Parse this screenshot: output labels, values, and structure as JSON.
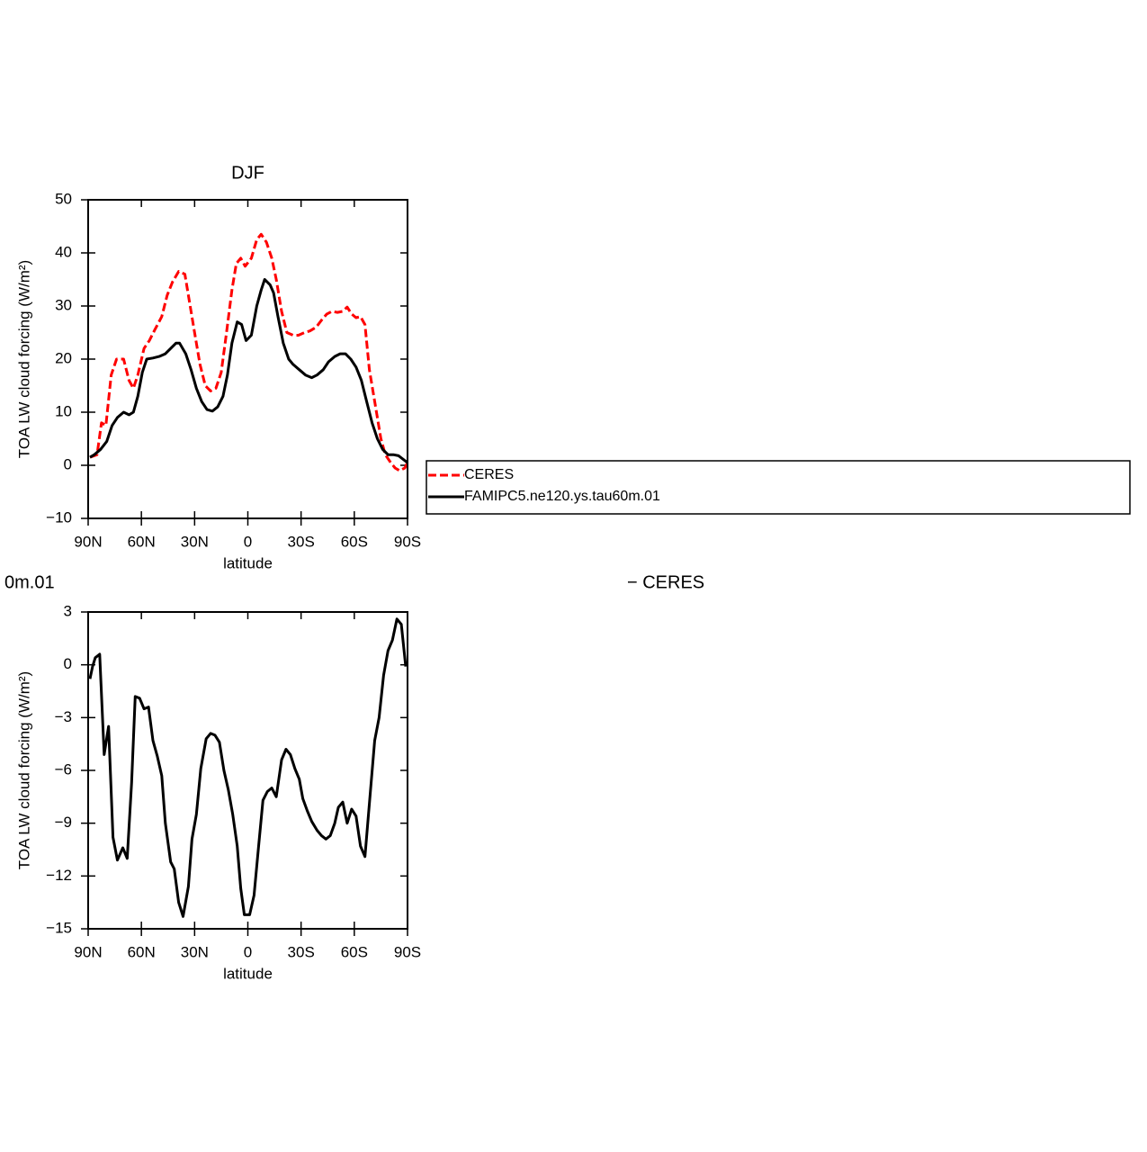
{
  "chart_data": [
    {
      "type": "line",
      "title": "DJF",
      "x_label": "latitude",
      "y_label": "TOA LW cloud forcing (W/m²)",
      "xlim": [
        90,
        -90
      ],
      "xticks": [
        {
          "value": 90,
          "label": "90N"
        },
        {
          "value": 60,
          "label": "60N"
        },
        {
          "value": 30,
          "label": "30N"
        },
        0,
        {
          "value": -30,
          "label": "30S"
        },
        {
          "value": -60,
          "label": "60S"
        },
        {
          "value": -90,
          "label": "90S"
        }
      ],
      "ylim": [
        -10,
        50
      ],
      "yticks": [
        {
          "value": -10,
          "label": "−10"
        },
        0,
        10,
        20,
        30,
        40,
        50
      ],
      "legend": "right",
      "series": [
        {
          "name": "CERES",
          "color": "#ff0000",
          "dash": true,
          "x": [
            89,
            85,
            82.5,
            80,
            77,
            74,
            70,
            67,
            64.5,
            62,
            58.5,
            55.5,
            52.5,
            48.5,
            45.5,
            42.5,
            39,
            35.5,
            33,
            30,
            27,
            24,
            21,
            18,
            15,
            12,
            9,
            6.5,
            4,
            1.5,
            -2,
            -5,
            -7.5,
            -10.5,
            -13.5,
            -16,
            -19,
            -22,
            -25.5,
            -28.5,
            -32,
            -35,
            -38.5,
            -41.5,
            -44.5,
            -47.5,
            -50.5,
            -53.5,
            -56,
            -58.5,
            -61,
            -63.5,
            -66,
            -68.5,
            -72,
            -75,
            -77.5,
            -80.5,
            -83,
            -85.5,
            -88.5,
            -90
          ],
          "values": [
            1.5,
            2,
            8,
            7.5,
            17,
            20,
            20,
            16,
            14.5,
            17,
            22,
            23.5,
            25.5,
            28,
            32,
            34.5,
            36.5,
            36,
            31,
            25,
            19,
            15,
            14,
            14.5,
            17.5,
            25,
            33,
            38,
            39,
            37.5,
            39,
            42.5,
            43.5,
            42,
            39,
            35,
            29,
            25,
            24.5,
            24.5,
            25,
            25.3,
            26,
            27.3,
            28.5,
            29,
            28.8,
            29,
            29.8,
            28.5,
            27.8,
            28,
            26.5,
            18,
            11,
            5,
            2,
            0.5,
            -0.5,
            -1,
            -0.5,
            0.5
          ]
        },
        {
          "name": "FAMIPC5.ne120.ys.tau60m.01",
          "color": "#000000",
          "dash": false,
          "x": [
            89,
            86.5,
            83,
            79.5,
            76.5,
            73.5,
            70,
            67,
            64.5,
            62,
            59.5,
            57,
            53.5,
            50,
            46.5,
            43.5,
            40.5,
            38.5,
            35,
            32,
            29,
            26,
            23,
            20,
            17,
            14,
            11.5,
            9,
            6,
            3.5,
            1,
            -2,
            -5,
            -7.5,
            -9.5,
            -12.5,
            -14.5,
            -17,
            -20,
            -23,
            -25.5,
            -29,
            -32.5,
            -36,
            -39,
            -42.5,
            -45.5,
            -49,
            -52,
            -55,
            -58,
            -61,
            -64,
            -67,
            -70,
            -73,
            -76,
            -79,
            -82,
            -85,
            -88,
            -90
          ],
          "values": [
            1.5,
            2,
            3,
            4.5,
            7.5,
            9,
            10,
            9.5,
            10,
            13,
            17.5,
            20,
            20.2,
            20.5,
            21,
            22,
            23,
            23,
            21,
            18,
            14.5,
            12,
            10.5,
            10.2,
            11,
            13,
            17,
            23,
            27,
            26.5,
            23.5,
            24.5,
            30,
            33,
            35,
            34,
            32.5,
            28,
            23,
            20,
            19,
            18,
            17,
            16.5,
            17,
            18,
            19.5,
            20.5,
            21,
            21,
            20,
            18.5,
            16,
            12,
            8,
            5,
            3,
            2,
            2,
            1.8,
            1,
            0.5
          ]
        }
      ]
    },
    {
      "type": "line",
      "title_parts": [
        "0m.01",
        "− CERES"
      ],
      "x_label": "latitude",
      "y_label": "TOA LW cloud forcing (W/m²)",
      "xlim": [
        90,
        -90
      ],
      "xticks": [
        {
          "value": 90,
          "label": "90N"
        },
        {
          "value": 60,
          "label": "60N"
        },
        {
          "value": 30,
          "label": "30N"
        },
        0,
        {
          "value": -30,
          "label": "30S"
        },
        {
          "value": -60,
          "label": "60S"
        },
        {
          "value": -90,
          "label": "90S"
        }
      ],
      "ylim": [
        -15,
        3
      ],
      "yticks": [
        {
          "value": -15,
          "label": "−15"
        },
        {
          "value": -12,
          "label": "−12"
        },
        {
          "value": -9,
          "label": "−9"
        },
        {
          "value": -6,
          "label": "−6"
        },
        {
          "value": -3,
          "label": "−3"
        },
        0,
        3
      ],
      "series": [
        {
          "color": "#000000",
          "dash": false,
          "x": [
            89,
            87.5,
            86,
            83.5,
            81,
            78.5,
            76,
            73.5,
            70.5,
            68,
            65.5,
            63.5,
            61,
            58.5,
            56,
            53.5,
            51,
            48.5,
            46.5,
            43.5,
            41.5,
            39,
            36.5,
            33.5,
            31.5,
            29,
            26.5,
            23.5,
            21,
            18.5,
            16,
            13.5,
            11,
            8.5,
            6,
            4,
            2,
            -1,
            -3.5,
            -6,
            -8.5,
            -11,
            -13.5,
            -16,
            -19,
            -21.5,
            -24,
            -26.5,
            -29,
            -31,
            -33.5,
            -36,
            -39,
            -41.5,
            -44,
            -46.5,
            -49,
            -51,
            -53.5,
            -56,
            -58.5,
            -61,
            -63.5,
            -66,
            -68,
            -71.5,
            -74,
            -76.5,
            -79,
            -81.5,
            -84,
            -86.5,
            -89
          ],
          "values": [
            -0.8,
            -0.1,
            0.4,
            0.6,
            -5.1,
            -3.5,
            -9.8,
            -11.1,
            -10.4,
            -11,
            -6.7,
            -1.8,
            -1.9,
            -2.5,
            -2.4,
            -4.3,
            -5.2,
            -6.3,
            -9,
            -11.2,
            -11.6,
            -13.5,
            -14.3,
            -12.6,
            -9.9,
            -8.5,
            -5.9,
            -4.2,
            -3.9,
            -4,
            -4.4,
            -6,
            -7.1,
            -8.5,
            -10.3,
            -12.7,
            -14.2,
            -14.2,
            -13.1,
            -10.4,
            -7.7,
            -7.2,
            -7,
            -7.5,
            -5.4,
            -4.8,
            -5.1,
            -5.9,
            -6.5,
            -7.6,
            -8.3,
            -8.9,
            -9.4,
            -9.7,
            -9.9,
            -9.7,
            -9,
            -8.1,
            -7.8,
            -9,
            -8.2,
            -8.6,
            -10.3,
            -10.9,
            -8.5,
            -4.3,
            -3,
            -0.6,
            0.8,
            1.4,
            2.6,
            2.3,
            -0.1
          ]
        }
      ]
    }
  ]
}
